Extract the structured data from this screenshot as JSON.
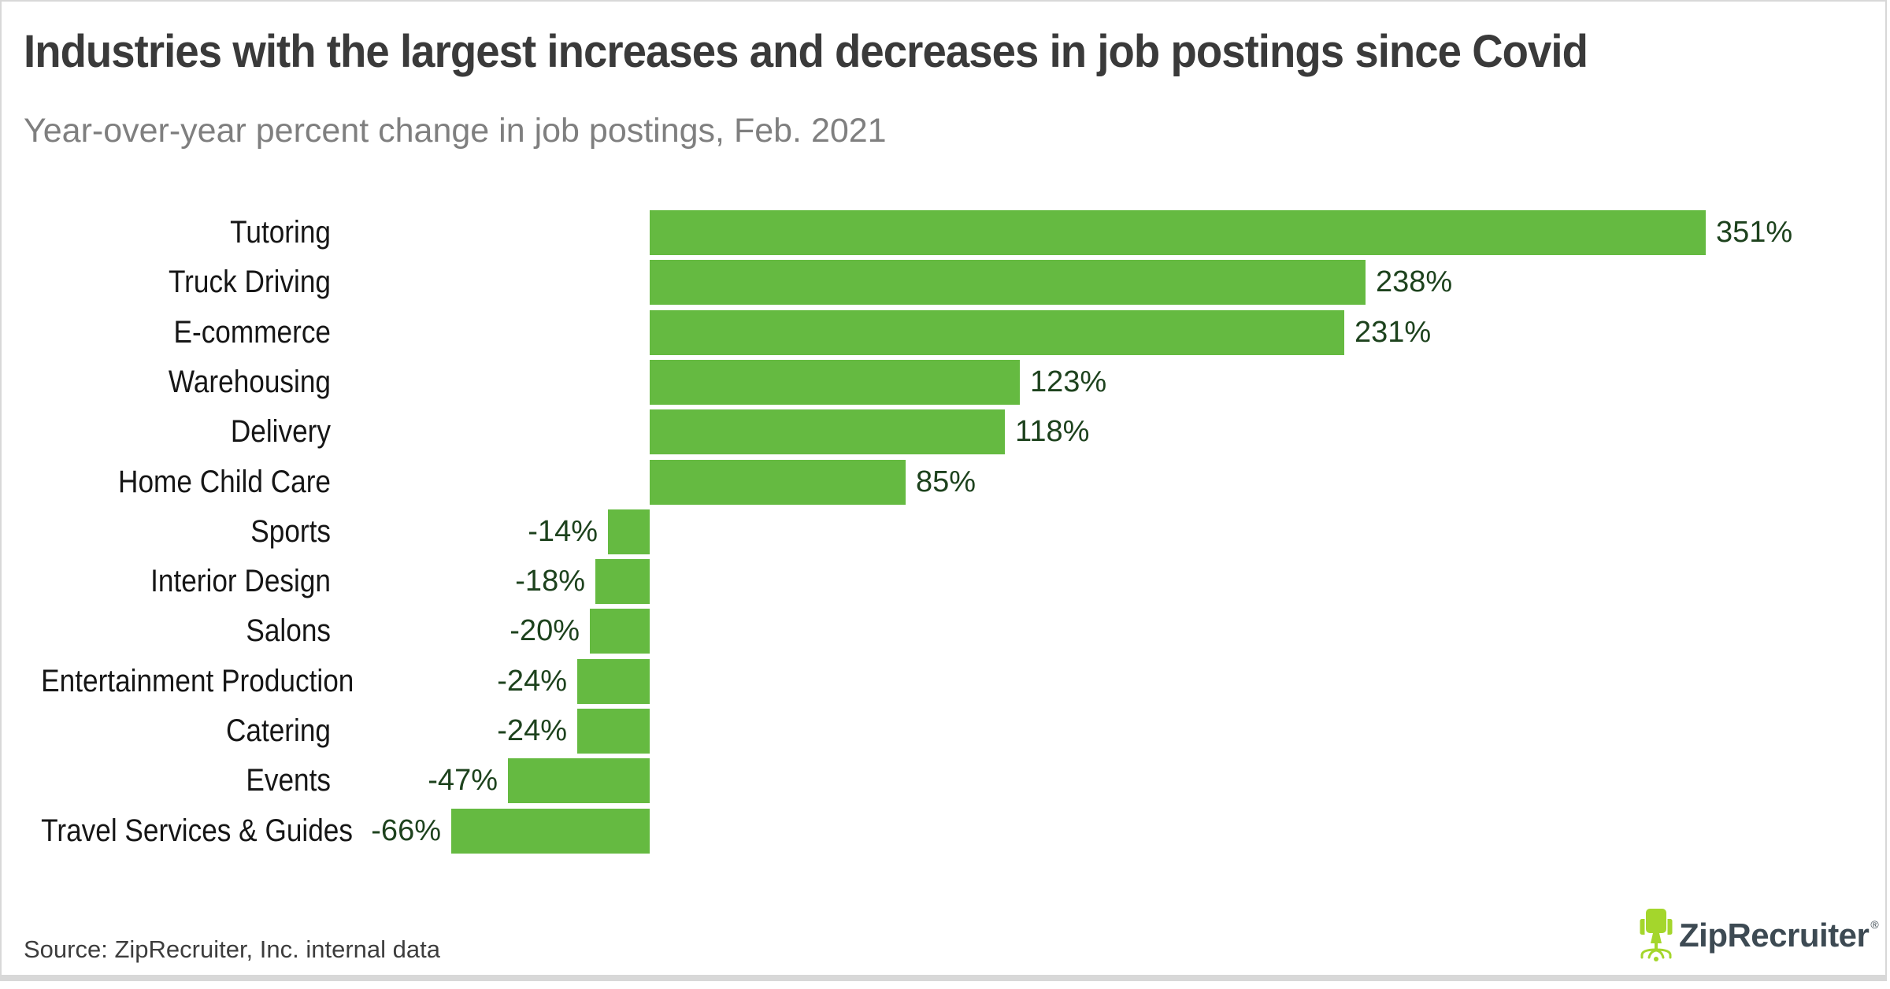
{
  "header": {
    "title": "Industries with the largest increases and decreases in job postings since Covid",
    "subtitle": "Year-over-year percent change in job postings, Feb. 2021"
  },
  "footer": {
    "source": "Source: ZipRecruiter, Inc. internal data",
    "logo_text": "ZipRecruiter",
    "registered_mark": "®"
  },
  "icons": {
    "logo_chair": "office-chair-icon"
  },
  "colors": {
    "bar_green": "#65ba41",
    "value_text_green": "#1d421d",
    "logo_lime": "#a4d62c",
    "logo_slate": "#3d4a53",
    "title_gray": "#3a3a3a",
    "subtitle_gray": "#7f7f7f",
    "border_gray": "#d8d8d8"
  },
  "chart_data": {
    "type": "bar",
    "orientation": "horizontal",
    "title": "Industries with the largest increases and decreases in job postings since Covid",
    "subtitle": "Year-over-year percent change in job postings, Feb. 2021",
    "xlabel": "",
    "ylabel": "",
    "xlim": [
      -66,
      351
    ],
    "grid": false,
    "legend": "none",
    "value_suffix": "%",
    "categories": [
      "Tutoring",
      "Truck Driving",
      "E-commerce",
      "Warehousing",
      "Delivery",
      "Home Child Care",
      "Sports",
      "Interior Design",
      "Salons",
      "Entertainment Production",
      "Catering",
      "Events",
      "Travel Services & Guides"
    ],
    "values": [
      351,
      238,
      231,
      123,
      118,
      85,
      -14,
      -18,
      -20,
      -24,
      -24,
      -47,
      -66
    ],
    "value_labels": [
      "351%",
      "238%",
      "231%",
      "123%",
      "118%",
      "85%",
      "-14%",
      "-18%",
      "-20%",
      "-24%",
      "-24%",
      "-47%",
      "-66%"
    ]
  }
}
